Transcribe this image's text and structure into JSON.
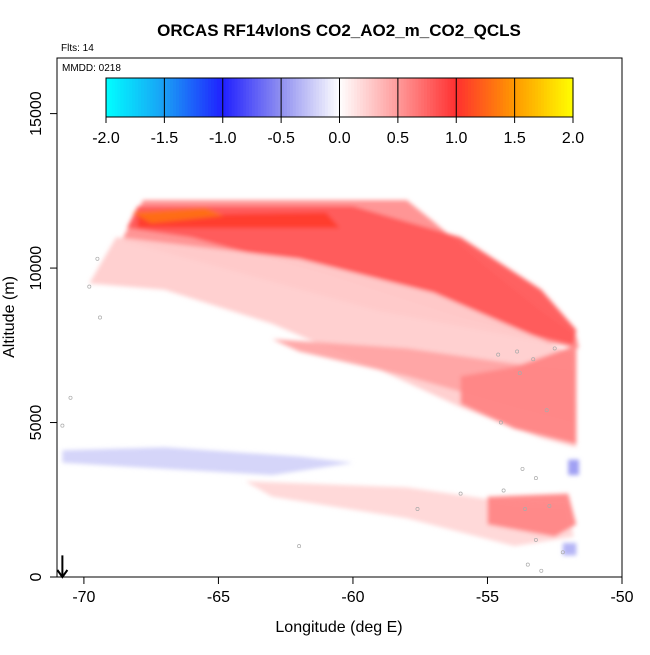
{
  "chart_data": {
    "type": "heatmap",
    "title": "ORCAS RF14vlonS CO2_AO2_m_CO2_QCLS",
    "subtitle_flights": "Flts: 14",
    "subtitle_date": "MMDD: 0218",
    "xlabel": "Longitude (deg E)",
    "ylabel": "Altitude (m)",
    "xlim": [
      -71,
      -50
    ],
    "ylim": [
      0,
      16800
    ],
    "x_ticks": [
      -70,
      -65,
      -60,
      -55,
      -50
    ],
    "x_tick_labels": [
      "-70",
      "-65",
      "-60",
      "-55",
      "-50"
    ],
    "y_ticks": [
      0,
      5000,
      10000,
      15000
    ],
    "y_tick_labels": [
      "0",
      "5000",
      "10000",
      "15000"
    ],
    "colorbar": {
      "range": [
        -2.0,
        2.0
      ],
      "ticks": [
        -2.0,
        -1.5,
        -1.0,
        -0.5,
        0.0,
        0.5,
        1.0,
        1.5,
        2.0
      ],
      "tick_labels": [
        "-2.0",
        "-1.5",
        "-1.0",
        "-0.5",
        "0.0",
        "0.5",
        "1.0",
        "1.5",
        "2.0"
      ],
      "stops": [
        {
          "value": -2.0,
          "color": "#00ffff"
        },
        {
          "value": -1.5,
          "color": "#1a9ef5"
        },
        {
          "value": -1.0,
          "color": "#2020ff"
        },
        {
          "value": -0.5,
          "color": "#9090f0"
        },
        {
          "value": 0.0,
          "color": "#ffffff"
        },
        {
          "value": 0.5,
          "color": "#ff9a9a"
        },
        {
          "value": 1.0,
          "color": "#ff3030"
        },
        {
          "value": 1.5,
          "color": "#ff9900"
        },
        {
          "value": 2.0,
          "color": "#ffff00"
        }
      ]
    },
    "grid": false,
    "marker": {
      "type": "arrow-down",
      "longitude": -70.8,
      "altitude": 700,
      "to_altitude": 0
    },
    "regions": [
      {
        "name": "top-band",
        "polygon": [
          [
            -67.8,
            12200
          ],
          [
            -58.0,
            12200
          ],
          [
            -57.0,
            11500
          ],
          [
            -55.0,
            10000
          ],
          [
            -53.0,
            8600
          ],
          [
            -51.7,
            7800
          ],
          [
            -51.6,
            7400
          ],
          [
            -59.0,
            8600
          ],
          [
            -64.0,
            9800
          ],
          [
            -68.6,
            10900
          ]
        ],
        "value": 0.55
      },
      {
        "name": "upper-core",
        "polygon": [
          [
            -68.0,
            12000
          ],
          [
            -60.0,
            12000
          ],
          [
            -56.0,
            11000
          ],
          [
            -53.0,
            9300
          ],
          [
            -51.7,
            8000
          ],
          [
            -51.8,
            7500
          ],
          [
            -56.0,
            8400
          ],
          [
            -61.0,
            9800
          ],
          [
            -66.0,
            11000
          ],
          [
            -68.4,
            11300
          ]
        ],
        "value": 0.8
      },
      {
        "name": "top-max-strip",
        "polygon": [
          [
            -68.0,
            11700
          ],
          [
            -61.0,
            11800
          ],
          [
            -60.5,
            11300
          ],
          [
            -68.0,
            11300
          ]
        ],
        "value": 1.05
      },
      {
        "name": "orange-patch",
        "polygon": [
          [
            -68.2,
            11800
          ],
          [
            -65.5,
            11950
          ],
          [
            -64.8,
            11700
          ],
          [
            -67.5,
            11450
          ]
        ],
        "value": 1.3
      },
      {
        "name": "upper-mid-wedge",
        "polygon": [
          [
            -68.8,
            11000
          ],
          [
            -62.0,
            10300
          ],
          [
            -57.0,
            9200
          ],
          [
            -53.0,
            7700
          ],
          [
            -51.8,
            7200
          ],
          [
            -51.7,
            4200
          ],
          [
            -53.0,
            4500
          ],
          [
            -56.0,
            5500
          ],
          [
            -59.0,
            6700
          ],
          [
            -63.0,
            8200
          ],
          [
            -67.0,
            9300
          ],
          [
            -69.8,
            9500
          ]
        ],
        "value": 0.25
      },
      {
        "name": "mid-streak",
        "polygon": [
          [
            -63.0,
            7700
          ],
          [
            -58.0,
            7400
          ],
          [
            -54.0,
            6900
          ],
          [
            -51.8,
            6700
          ],
          [
            -51.8,
            5000
          ],
          [
            -54.0,
            5500
          ],
          [
            -58.0,
            6500
          ],
          [
            -62.0,
            7300
          ]
        ],
        "value": 0.45
      },
      {
        "name": "right-core",
        "polygon": [
          [
            -56.0,
            6500
          ],
          [
            -54.0,
            6800
          ],
          [
            -51.7,
            7500
          ],
          [
            -51.7,
            4300
          ],
          [
            -54.0,
            4800
          ],
          [
            -56.0,
            5600
          ]
        ],
        "value": 0.6
      },
      {
        "name": "low-right-layer",
        "polygon": [
          [
            -64.0,
            3100
          ],
          [
            -58.0,
            2900
          ],
          [
            -54.0,
            2400
          ],
          [
            -52.0,
            2300
          ],
          [
            -51.8,
            1300
          ],
          [
            -54.0,
            1000
          ],
          [
            -58.0,
            1900
          ],
          [
            -63.0,
            2600
          ]
        ],
        "value": 0.2
      },
      {
        "name": "low-right-core",
        "polygon": [
          [
            -55.0,
            2600
          ],
          [
            -52.0,
            2700
          ],
          [
            -51.7,
            1700
          ],
          [
            -52.5,
            1300
          ],
          [
            -55.0,
            1700
          ]
        ],
        "value": 0.6
      },
      {
        "name": "blue-streak",
        "polygon": [
          [
            -70.8,
            4100
          ],
          [
            -67.0,
            4200
          ],
          [
            -62.0,
            3900
          ],
          [
            -60.0,
            3700
          ],
          [
            -63.0,
            3300
          ],
          [
            -67.0,
            3500
          ],
          [
            -70.8,
            3700
          ]
        ],
        "value": -0.2
      },
      {
        "name": "blue-patch-right",
        "polygon": [
          [
            -52.0,
            3800
          ],
          [
            -51.6,
            3800
          ],
          [
            -51.6,
            3300
          ],
          [
            -52.0,
            3300
          ]
        ],
        "value": -0.45
      },
      {
        "name": "blue-patch-low",
        "polygon": [
          [
            -52.2,
            1100
          ],
          [
            -51.7,
            1100
          ],
          [
            -51.7,
            700
          ],
          [
            -52.2,
            700
          ]
        ],
        "value": -0.35
      }
    ]
  }
}
